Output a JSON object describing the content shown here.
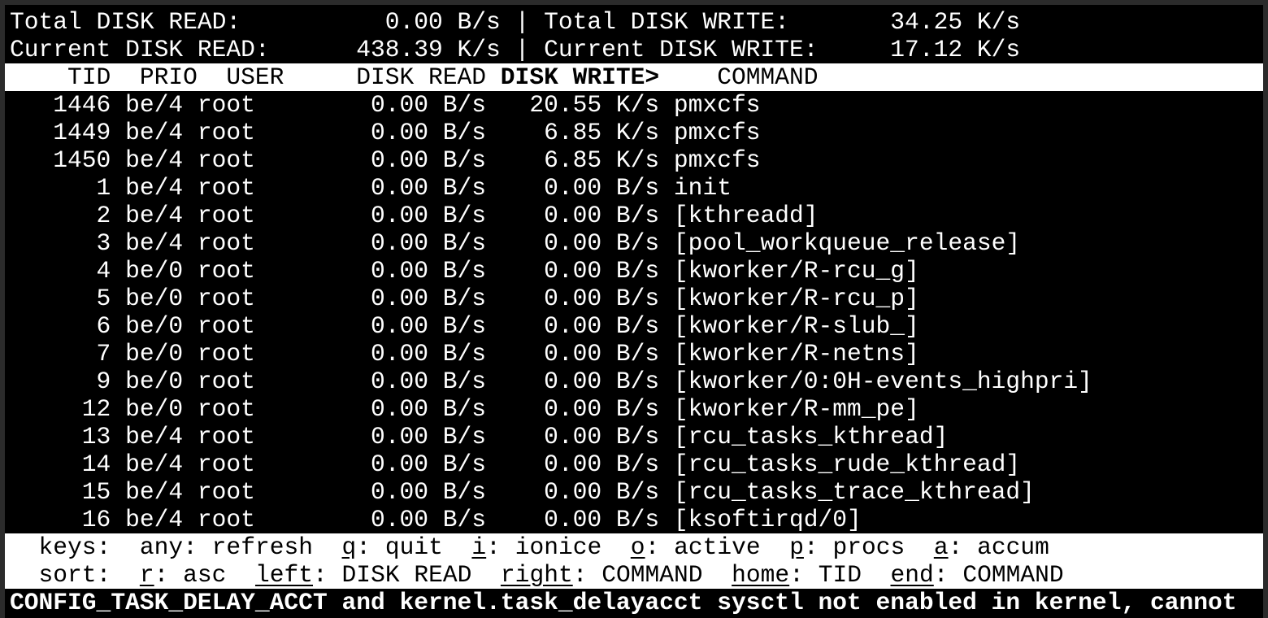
{
  "summary": {
    "total_read_label": "Total DISK READ:",
    "total_read": "0.00 B/s",
    "total_write_label": "Total DISK WRITE:",
    "total_write": "34.25 K/s",
    "current_read_label": "Current DISK READ:",
    "current_read": "438.39 K/s",
    "current_write_label": "Current DISK WRITE:",
    "current_write": "17.12 K/s",
    "separator": "|"
  },
  "columns": {
    "tid": "TID",
    "prio": "PRIO",
    "user": "USER",
    "read": "DISK READ",
    "write": "DISK WRITE>",
    "command": "COMMAND"
  },
  "rows": [
    {
      "tid": "1446",
      "prio": "be/4",
      "user": "root",
      "read": "0.00 B/s",
      "write": "20.55 K/s",
      "command": "pmxcfs"
    },
    {
      "tid": "1449",
      "prio": "be/4",
      "user": "root",
      "read": "0.00 B/s",
      "write": "6.85 K/s",
      "command": "pmxcfs"
    },
    {
      "tid": "1450",
      "prio": "be/4",
      "user": "root",
      "read": "0.00 B/s",
      "write": "6.85 K/s",
      "command": "pmxcfs"
    },
    {
      "tid": "1",
      "prio": "be/4",
      "user": "root",
      "read": "0.00 B/s",
      "write": "0.00 B/s",
      "command": "init"
    },
    {
      "tid": "2",
      "prio": "be/4",
      "user": "root",
      "read": "0.00 B/s",
      "write": "0.00 B/s",
      "command": "[kthreadd]"
    },
    {
      "tid": "3",
      "prio": "be/4",
      "user": "root",
      "read": "0.00 B/s",
      "write": "0.00 B/s",
      "command": "[pool_workqueue_release]"
    },
    {
      "tid": "4",
      "prio": "be/0",
      "user": "root",
      "read": "0.00 B/s",
      "write": "0.00 B/s",
      "command": "[kworker/R-rcu_g]"
    },
    {
      "tid": "5",
      "prio": "be/0",
      "user": "root",
      "read": "0.00 B/s",
      "write": "0.00 B/s",
      "command": "[kworker/R-rcu_p]"
    },
    {
      "tid": "6",
      "prio": "be/0",
      "user": "root",
      "read": "0.00 B/s",
      "write": "0.00 B/s",
      "command": "[kworker/R-slub_]"
    },
    {
      "tid": "7",
      "prio": "be/0",
      "user": "root",
      "read": "0.00 B/s",
      "write": "0.00 B/s",
      "command": "[kworker/R-netns]"
    },
    {
      "tid": "9",
      "prio": "be/0",
      "user": "root",
      "read": "0.00 B/s",
      "write": "0.00 B/s",
      "command": "[kworker/0:0H-events_highpri]"
    },
    {
      "tid": "12",
      "prio": "be/0",
      "user": "root",
      "read": "0.00 B/s",
      "write": "0.00 B/s",
      "command": "[kworker/R-mm_pe]"
    },
    {
      "tid": "13",
      "prio": "be/4",
      "user": "root",
      "read": "0.00 B/s",
      "write": "0.00 B/s",
      "command": "[rcu_tasks_kthread]"
    },
    {
      "tid": "14",
      "prio": "be/4",
      "user": "root",
      "read": "0.00 B/s",
      "write": "0.00 B/s",
      "command": "[rcu_tasks_rude_kthread]"
    },
    {
      "tid": "15",
      "prio": "be/4",
      "user": "root",
      "read": "0.00 B/s",
      "write": "0.00 B/s",
      "command": "[rcu_tasks_trace_kthread]"
    },
    {
      "tid": "16",
      "prio": "be/4",
      "user": "root",
      "read": "0.00 B/s",
      "write": "0.00 B/s",
      "command": "[ksoftirqd/0]"
    }
  ],
  "keys": {
    "label": "keys:",
    "items": [
      {
        "key": "any",
        "desc": "refresh",
        "underline": false
      },
      {
        "key": "q",
        "desc": "quit",
        "underline": true
      },
      {
        "key": "i",
        "desc": "ionice",
        "underline": true
      },
      {
        "key": "o",
        "desc": "active",
        "underline": true
      },
      {
        "key": "p",
        "desc": "procs",
        "underline": true
      },
      {
        "key": "a",
        "desc": "accum",
        "underline": true
      }
    ]
  },
  "sort": {
    "label": "sort:",
    "items": [
      {
        "key": "r",
        "desc": "asc",
        "underline": true
      },
      {
        "key": "left",
        "desc": "DISK READ",
        "underline": true
      },
      {
        "key": "right",
        "desc": "COMMAND",
        "underline": true
      },
      {
        "key": "home",
        "desc": "TID",
        "underline": true
      },
      {
        "key": "end",
        "desc": "COMMAND",
        "underline": true
      }
    ]
  },
  "warning": "CONFIG_TASK_DELAY_ACCT and kernel.task_delayacct sysctl not enabled in kernel, cannot"
}
